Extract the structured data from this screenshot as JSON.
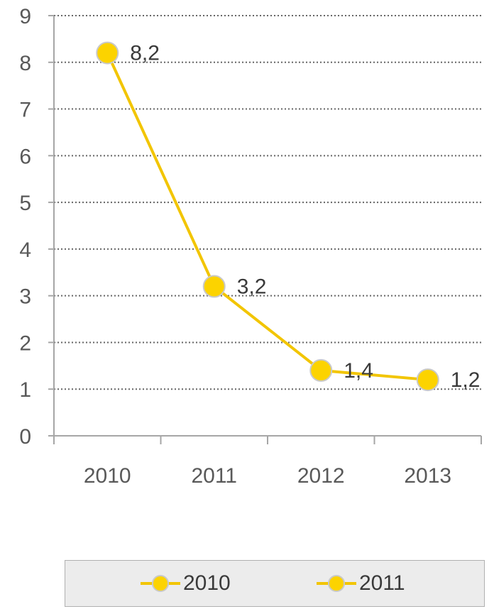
{
  "chart_data": {
    "type": "line",
    "categories": [
      "2010",
      "2011",
      "2012",
      "2013"
    ],
    "series": [
      {
        "name": "2010",
        "values": [
          8.2,
          3.2,
          1.4,
          1.2
        ],
        "color": "#f2c500"
      }
    ],
    "data_labels": [
      "8,2",
      "3,2",
      "1,4",
      "1,2"
    ],
    "y_ticks": [
      "0",
      "1",
      "2",
      "3",
      "4",
      "5",
      "6",
      "7",
      "8",
      "9"
    ],
    "ylim": [
      0,
      9
    ],
    "grid": true,
    "grid_style": "dotted",
    "legend": {
      "position": "bottom",
      "entries": [
        "2010",
        "2011"
      ]
    },
    "colors": {
      "line": "#f2c500",
      "marker_fill": "#fcd300",
      "marker_edge": "#c9c9c9",
      "axis": "#a6a6a6",
      "grid": "#666666"
    }
  }
}
